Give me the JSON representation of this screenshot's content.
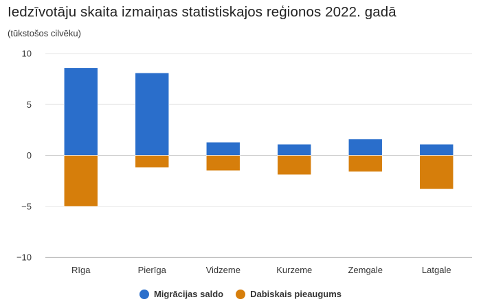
{
  "chart_data": {
    "type": "bar",
    "stacked": true,
    "title": "Iedzīvotāju skaita izmaiņas statistiskajos reģionos 2022. gadā",
    "subtitle": "(tūkstošos cilvēku)",
    "xlabel": "",
    "ylabel": "",
    "categories": [
      "Rīga",
      "Pierīga",
      "Vidzeme",
      "Kurzeme",
      "Zemgale",
      "Latgale"
    ],
    "series": [
      {
        "name": "Migrācijas saldo",
        "color": "#2a6ecb",
        "values": [
          8.6,
          8.1,
          1.3,
          1.1,
          1.6,
          1.1
        ]
      },
      {
        "name": "Dabiskais pieaugums",
        "color": "#d67e0b",
        "values": [
          -5.0,
          -1.2,
          -1.5,
          -1.9,
          -1.6,
          -3.3
        ]
      }
    ],
    "ylim": [
      -10,
      10
    ],
    "yticks": [
      10,
      5,
      0,
      -5,
      -10
    ],
    "ytick_labels": [
      "10",
      "5",
      "0",
      "−5",
      "−10"
    ],
    "grid": true,
    "legend_position": "bottom-center"
  }
}
